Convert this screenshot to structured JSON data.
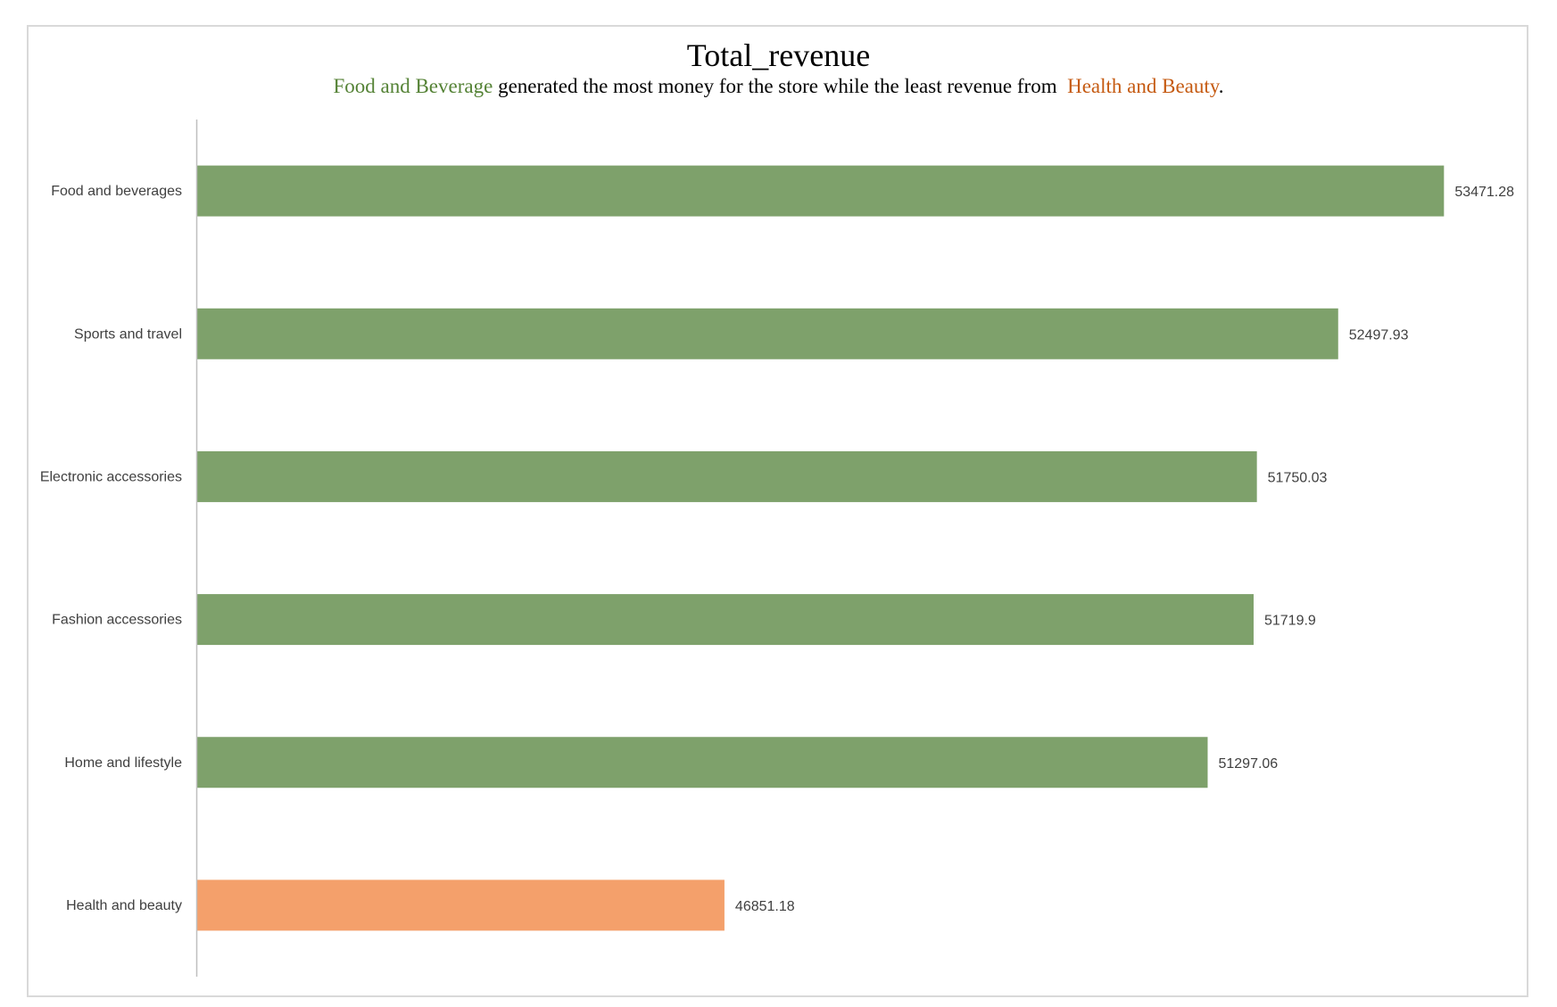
{
  "chart_data": {
    "type": "bar",
    "orientation": "horizontal",
    "title": "Total_revenue",
    "subtitle": {
      "part1": "Food and Beverage",
      "part2": " generated the most money for the store while the least revenue from  ",
      "part3": "Health and Beauty",
      "part4": ".",
      "part1_color": "#548235",
      "part3_color": "#C55A11",
      "part2_color": "#000000"
    },
    "categories": [
      "Food and beverages",
      "Sports and travel",
      "Electronic accessories",
      "Fashion accessories",
      "Home and lifestyle",
      "Health and beauty"
    ],
    "values": [
      53471.28,
      52497.93,
      51750.03,
      51719.9,
      51297.06,
      46851.18
    ],
    "value_labels": [
      "53471.28",
      "52497.93",
      "51750.03",
      "51719.9",
      "51297.06",
      "46851.18"
    ],
    "bar_colors": [
      "#7EA16B",
      "#7EA16B",
      "#7EA16B",
      "#7EA16B",
      "#7EA16B",
      "#F4A06B"
    ],
    "xlim": [
      42000,
      53600
    ],
    "grid": false,
    "legend": "none",
    "xlabel": "",
    "ylabel": ""
  }
}
